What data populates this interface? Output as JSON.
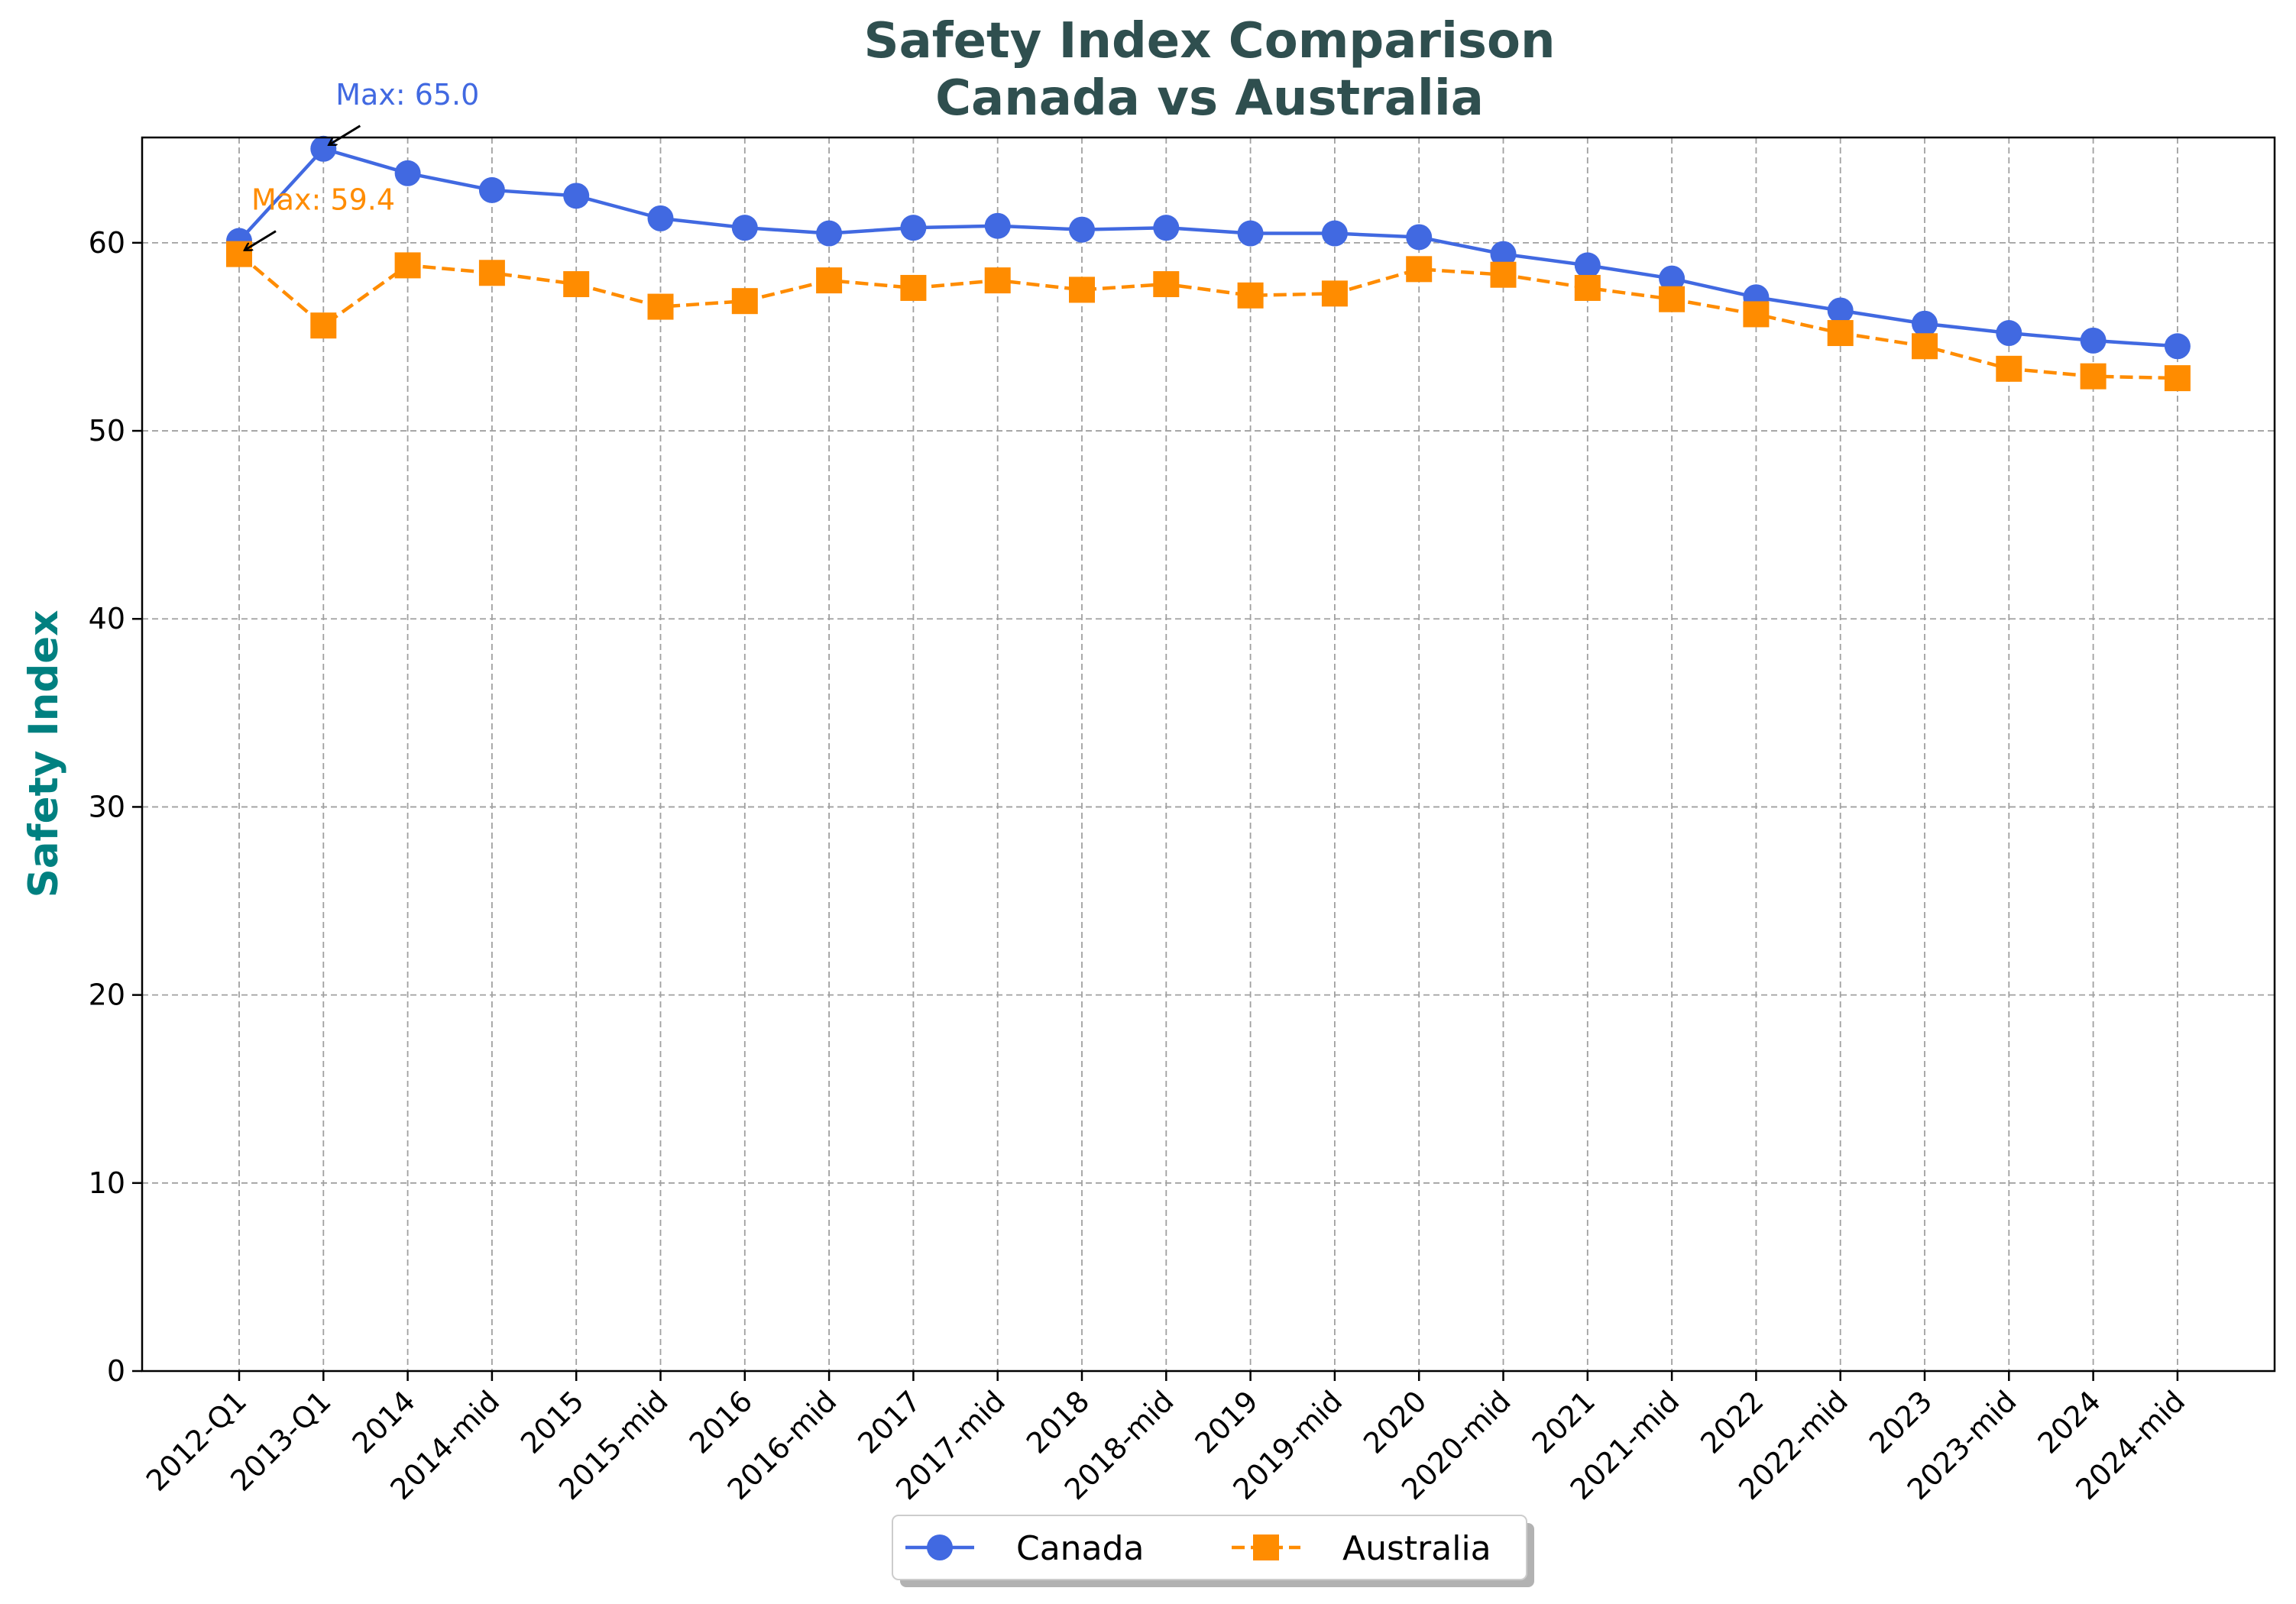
{
  "chart_data": {
    "type": "line",
    "title": [
      "Safety Index Comparison",
      "Canada vs Australia"
    ],
    "xlabel": "",
    "ylabel": "Safety Index",
    "ylim": [
      0,
      65.6
    ],
    "yticks": [
      0,
      10,
      20,
      30,
      40,
      50,
      60
    ],
    "grid": true,
    "legend_position": "bottom-center",
    "categories": [
      "2012-Q1",
      "2013-Q1",
      "2014",
      "2014-mid",
      "2015",
      "2015-mid",
      "2016",
      "2016-mid",
      "2017",
      "2017-mid",
      "2018",
      "2018-mid",
      "2019",
      "2019-mid",
      "2020",
      "2020-mid",
      "2021",
      "2021-mid",
      "2022",
      "2022-mid",
      "2023",
      "2023-mid",
      "2024",
      "2024-mid"
    ],
    "series": [
      {
        "name": "Canada",
        "color": "#4169e1",
        "marker": "circle",
        "line_style": "solid",
        "values": [
          60.1,
          65.0,
          63.7,
          62.8,
          62.5,
          61.3,
          60.8,
          60.5,
          60.8,
          60.9,
          60.7,
          60.8,
          60.5,
          60.5,
          60.3,
          59.4,
          58.8,
          58.1,
          57.1,
          56.4,
          55.7,
          55.2,
          54.8,
          54.5
        ]
      },
      {
        "name": "Australia",
        "color": "#ff8c00",
        "marker": "square",
        "line_style": "dashed",
        "values": [
          59.4,
          55.6,
          58.8,
          58.4,
          57.8,
          56.6,
          56.9,
          58.0,
          57.6,
          58.0,
          57.5,
          57.8,
          57.2,
          57.3,
          58.6,
          58.3,
          57.6,
          57.0,
          56.2,
          55.2,
          54.5,
          53.3,
          52.9,
          52.8
        ]
      }
    ],
    "annotations": [
      {
        "text": "Max: 65.0",
        "series": "Canada",
        "category": "2013-Q1",
        "value": 65.0,
        "color": "#4169e1"
      },
      {
        "text": "Max: 59.4",
        "series": "Australia",
        "category": "2012-Q1",
        "value": 59.4,
        "color": "#ff8c00"
      }
    ]
  }
}
